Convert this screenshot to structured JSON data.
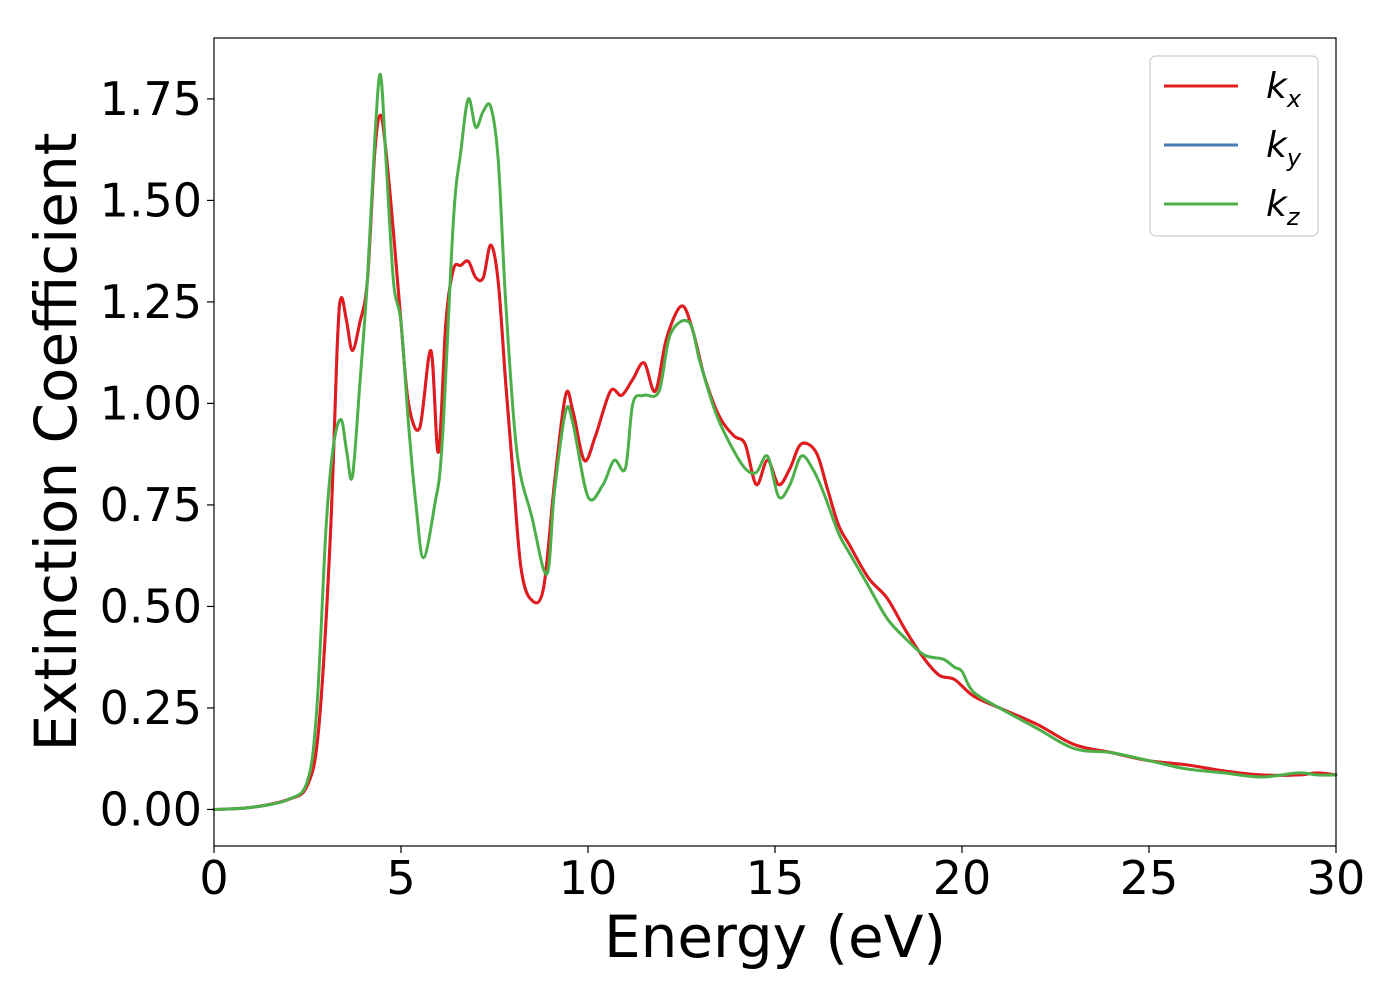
{
  "chart_data": {
    "type": "line",
    "title": "",
    "xlabel": "Energy (eV)",
    "ylabel": "Extinction Coefficient",
    "xlim": [
      0,
      30
    ],
    "ylim": [
      -0.09,
      1.9
    ],
    "xticks": [
      "0",
      "5",
      "10",
      "15",
      "20",
      "25",
      "30"
    ],
    "yticks": [
      "0.00",
      "0.25",
      "0.50",
      "0.75",
      "1.00",
      "1.25",
      "1.50",
      "1.75"
    ],
    "grid": false,
    "legend_position": "top-right",
    "series": [
      {
        "name": "k",
        "subscript": "x",
        "color": "#e41a1c",
        "points": [
          [
            0,
            0
          ],
          [
            1,
            0.005
          ],
          [
            2,
            0.025
          ],
          [
            2.5,
            0.06
          ],
          [
            2.8,
            0.2
          ],
          [
            3.1,
            0.65
          ],
          [
            3.3,
            1.15
          ],
          [
            3.4,
            1.26
          ],
          [
            3.55,
            1.2
          ],
          [
            3.7,
            1.13
          ],
          [
            3.9,
            1.2
          ],
          [
            4.1,
            1.3
          ],
          [
            4.3,
            1.62
          ],
          [
            4.45,
            1.71
          ],
          [
            4.6,
            1.62
          ],
          [
            4.8,
            1.42
          ],
          [
            5.0,
            1.2
          ],
          [
            5.2,
            1.0
          ],
          [
            5.5,
            0.94
          ],
          [
            5.8,
            1.13
          ],
          [
            6.0,
            0.88
          ],
          [
            6.2,
            1.2
          ],
          [
            6.4,
            1.33
          ],
          [
            6.6,
            1.34
          ],
          [
            6.8,
            1.35
          ],
          [
            7.0,
            1.31
          ],
          [
            7.2,
            1.31
          ],
          [
            7.4,
            1.39
          ],
          [
            7.6,
            1.3
          ],
          [
            7.8,
            1.05
          ],
          [
            8.0,
            0.82
          ],
          [
            8.2,
            0.6
          ],
          [
            8.45,
            0.52
          ],
          [
            8.8,
            0.54
          ],
          [
            9.1,
            0.8
          ],
          [
            9.4,
            1.02
          ],
          [
            9.6,
            0.98
          ],
          [
            9.9,
            0.86
          ],
          [
            10.2,
            0.92
          ],
          [
            10.6,
            1.03
          ],
          [
            10.9,
            1.02
          ],
          [
            11.2,
            1.06
          ],
          [
            11.5,
            1.1
          ],
          [
            11.8,
            1.03
          ],
          [
            12.1,
            1.16
          ],
          [
            12.5,
            1.24
          ],
          [
            12.8,
            1.18
          ],
          [
            13.1,
            1.07
          ],
          [
            13.5,
            0.97
          ],
          [
            13.9,
            0.92
          ],
          [
            14.2,
            0.9
          ],
          [
            14.5,
            0.8
          ],
          [
            14.8,
            0.86
          ],
          [
            15.1,
            0.8
          ],
          [
            15.4,
            0.84
          ],
          [
            15.7,
            0.9
          ],
          [
            16.1,
            0.88
          ],
          [
            16.4,
            0.79
          ],
          [
            16.7,
            0.7
          ],
          [
            17.0,
            0.65
          ],
          [
            17.5,
            0.57
          ],
          [
            18.0,
            0.52
          ],
          [
            18.5,
            0.44
          ],
          [
            19.0,
            0.37
          ],
          [
            19.4,
            0.33
          ],
          [
            19.8,
            0.32
          ],
          [
            20.3,
            0.28
          ],
          [
            21.0,
            0.25
          ],
          [
            22.0,
            0.21
          ],
          [
            23.0,
            0.16
          ],
          [
            24.0,
            0.14
          ],
          [
            25.0,
            0.12
          ],
          [
            26.0,
            0.11
          ],
          [
            27.0,
            0.095
          ],
          [
            28.0,
            0.085
          ],
          [
            29.0,
            0.085
          ],
          [
            29.5,
            0.09
          ],
          [
            30.0,
            0.085
          ]
        ]
      },
      {
        "name": "k",
        "subscript": "y",
        "color": "#4a7ab4",
        "points": [
          [
            0,
            0
          ],
          [
            1,
            0.005
          ],
          [
            2,
            0.025
          ],
          [
            2.5,
            0.06
          ],
          [
            2.8,
            0.2
          ],
          [
            3.1,
            0.65
          ],
          [
            3.3,
            1.15
          ],
          [
            3.4,
            1.26
          ],
          [
            3.55,
            1.2
          ],
          [
            3.7,
            1.13
          ],
          [
            3.9,
            1.2
          ],
          [
            4.1,
            1.3
          ],
          [
            4.3,
            1.62
          ],
          [
            4.45,
            1.71
          ],
          [
            4.6,
            1.62
          ],
          [
            4.8,
            1.42
          ],
          [
            5.0,
            1.2
          ],
          [
            5.2,
            1.0
          ],
          [
            5.5,
            0.94
          ],
          [
            5.8,
            1.13
          ],
          [
            6.0,
            0.88
          ],
          [
            6.2,
            1.2
          ],
          [
            6.4,
            1.33
          ],
          [
            6.6,
            1.34
          ],
          [
            6.8,
            1.35
          ],
          [
            7.0,
            1.31
          ],
          [
            7.2,
            1.31
          ],
          [
            7.4,
            1.39
          ],
          [
            7.6,
            1.3
          ],
          [
            7.8,
            1.05
          ],
          [
            8.0,
            0.82
          ],
          [
            8.2,
            0.6
          ],
          [
            8.45,
            0.52
          ],
          [
            8.8,
            0.54
          ],
          [
            9.1,
            0.8
          ],
          [
            9.4,
            1.02
          ],
          [
            9.6,
            0.98
          ],
          [
            9.9,
            0.86
          ],
          [
            10.2,
            0.92
          ],
          [
            10.6,
            1.03
          ],
          [
            10.9,
            1.02
          ],
          [
            11.2,
            1.06
          ],
          [
            11.5,
            1.1
          ],
          [
            11.8,
            1.03
          ],
          [
            12.1,
            1.16
          ],
          [
            12.5,
            1.24
          ],
          [
            12.8,
            1.18
          ],
          [
            13.1,
            1.07
          ],
          [
            13.5,
            0.97
          ],
          [
            13.9,
            0.92
          ],
          [
            14.2,
            0.9
          ],
          [
            14.5,
            0.8
          ],
          [
            14.8,
            0.86
          ],
          [
            15.1,
            0.8
          ],
          [
            15.4,
            0.84
          ],
          [
            15.7,
            0.9
          ],
          [
            16.1,
            0.88
          ],
          [
            16.4,
            0.79
          ],
          [
            16.7,
            0.7
          ],
          [
            17.0,
            0.65
          ],
          [
            17.5,
            0.57
          ],
          [
            18.0,
            0.52
          ],
          [
            18.5,
            0.44
          ],
          [
            19.0,
            0.37
          ],
          [
            19.4,
            0.33
          ],
          [
            19.8,
            0.32
          ],
          [
            20.3,
            0.28
          ],
          [
            21.0,
            0.25
          ],
          [
            22.0,
            0.21
          ],
          [
            23.0,
            0.16
          ],
          [
            24.0,
            0.14
          ],
          [
            25.0,
            0.12
          ],
          [
            26.0,
            0.11
          ],
          [
            27.0,
            0.095
          ],
          [
            28.0,
            0.085
          ],
          [
            29.0,
            0.085
          ],
          [
            29.5,
            0.09
          ],
          [
            30.0,
            0.085
          ]
        ]
      },
      {
        "name": "k",
        "subscript": "z",
        "color": "#4daf4a",
        "points": [
          [
            0,
            0
          ],
          [
            1,
            0.005
          ],
          [
            2,
            0.025
          ],
          [
            2.5,
            0.07
          ],
          [
            2.75,
            0.25
          ],
          [
            3.0,
            0.7
          ],
          [
            3.2,
            0.9
          ],
          [
            3.4,
            0.96
          ],
          [
            3.55,
            0.88
          ],
          [
            3.7,
            0.82
          ],
          [
            3.9,
            1.05
          ],
          [
            4.1,
            1.3
          ],
          [
            4.3,
            1.65
          ],
          [
            4.45,
            1.81
          ],
          [
            4.6,
            1.6
          ],
          [
            4.8,
            1.3
          ],
          [
            5.0,
            1.2
          ],
          [
            5.2,
            0.95
          ],
          [
            5.4,
            0.75
          ],
          [
            5.6,
            0.62
          ],
          [
            5.9,
            0.75
          ],
          [
            6.1,
            0.9
          ],
          [
            6.4,
            1.45
          ],
          [
            6.6,
            1.62
          ],
          [
            6.8,
            1.75
          ],
          [
            7.0,
            1.68
          ],
          [
            7.2,
            1.72
          ],
          [
            7.4,
            1.73
          ],
          [
            7.6,
            1.6
          ],
          [
            7.8,
            1.25
          ],
          [
            8.1,
            0.88
          ],
          [
            8.5,
            0.72
          ],
          [
            8.9,
            0.58
          ],
          [
            9.1,
            0.78
          ],
          [
            9.4,
            0.98
          ],
          [
            9.6,
            0.95
          ],
          [
            10.0,
            0.77
          ],
          [
            10.4,
            0.8
          ],
          [
            10.7,
            0.86
          ],
          [
            11.0,
            0.84
          ],
          [
            11.2,
            1.0
          ],
          [
            11.5,
            1.02
          ],
          [
            11.9,
            1.03
          ],
          [
            12.2,
            1.17
          ],
          [
            12.7,
            1.2
          ],
          [
            13.0,
            1.1
          ],
          [
            13.4,
            0.98
          ],
          [
            13.8,
            0.9
          ],
          [
            14.2,
            0.84
          ],
          [
            14.5,
            0.83
          ],
          [
            14.8,
            0.87
          ],
          [
            15.1,
            0.77
          ],
          [
            15.4,
            0.8
          ],
          [
            15.7,
            0.87
          ],
          [
            16.0,
            0.84
          ],
          [
            16.3,
            0.78
          ],
          [
            16.7,
            0.68
          ],
          [
            17.0,
            0.63
          ],
          [
            17.5,
            0.55
          ],
          [
            18.0,
            0.47
          ],
          [
            18.5,
            0.42
          ],
          [
            19.0,
            0.38
          ],
          [
            19.5,
            0.37
          ],
          [
            19.8,
            0.35
          ],
          [
            20.0,
            0.34
          ],
          [
            20.3,
            0.29
          ],
          [
            21.0,
            0.25
          ],
          [
            22.0,
            0.2
          ],
          [
            23.0,
            0.15
          ],
          [
            24.0,
            0.14
          ],
          [
            25.0,
            0.12
          ],
          [
            26.0,
            0.1
          ],
          [
            27.0,
            0.09
          ],
          [
            28.0,
            0.08
          ],
          [
            29.0,
            0.09
          ],
          [
            29.5,
            0.085
          ],
          [
            30.0,
            0.085
          ]
        ]
      }
    ]
  }
}
